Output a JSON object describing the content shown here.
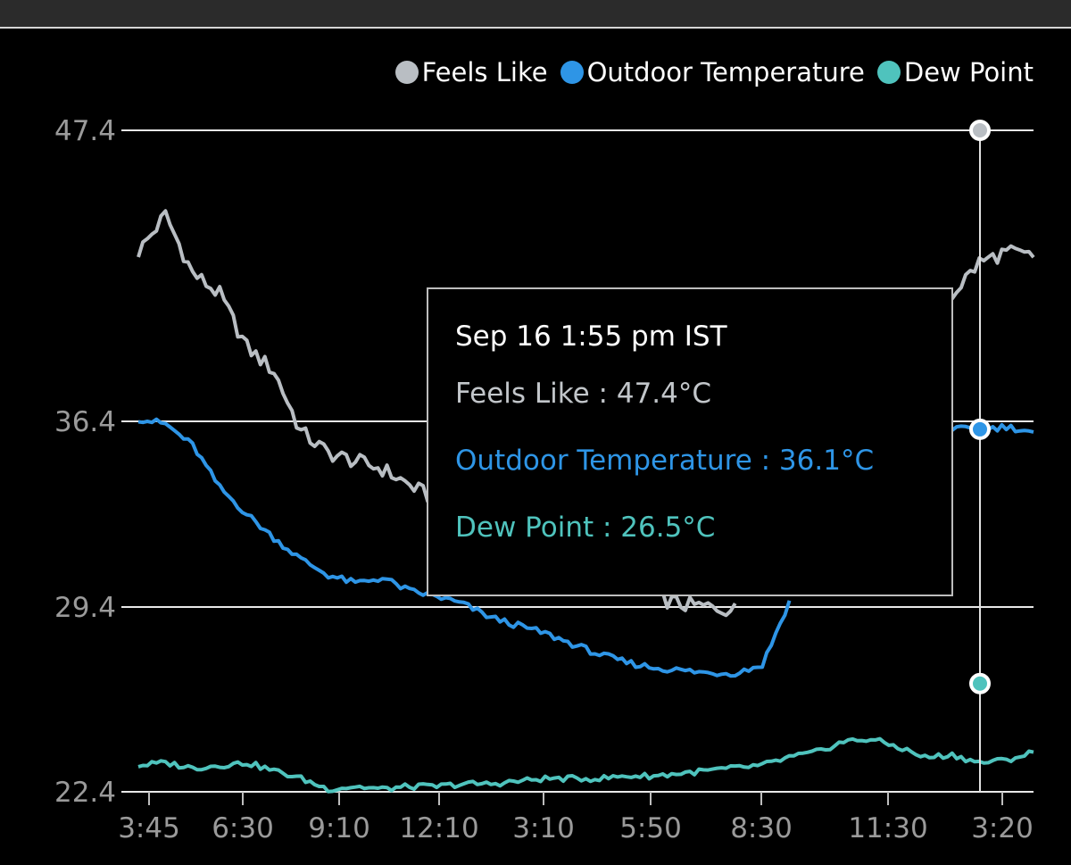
{
  "chart_data": {
    "type": "line",
    "yticks": [
      "47.4",
      "36.4",
      "29.4",
      "22.4"
    ],
    "xticks": [
      "3:45",
      "6:30",
      "9:10",
      "12:10",
      "3:10",
      "5:50",
      "8:30",
      "11:30",
      "3:20"
    ],
    "ylim": [
      22.4,
      47.4
    ],
    "grid": true,
    "legend_position": "top-right",
    "series": [
      {
        "name": "Feels Like",
        "color": "#b9bec3",
        "values": [
          42.8,
          44.2,
          42.0,
          41.2,
          39.2,
          38.3,
          36.0,
          35.2,
          34.9,
          34.6,
          34.0,
          33.4,
          32.9,
          32.4,
          31.8,
          31.4,
          30.8,
          30.5,
          30.2,
          29.8,
          29.5,
          29.4,
          29.3,
          29.6,
          31.5,
          33.6,
          35.8,
          38.2,
          39.8,
          40.8,
          41.2,
          42.4,
          42.8,
          42.6
        ],
        "gaps": [
          [
            22,
            25
          ]
        ]
      },
      {
        "name": "Outdoor Temperature",
        "color": "#2e95e6",
        "values": [
          36.5,
          36.3,
          35.5,
          33.9,
          32.9,
          32.0,
          31.2,
          30.6,
          30.3,
          30.5,
          30.0,
          29.8,
          29.5,
          29.0,
          28.7,
          28.4,
          28.0,
          27.6,
          27.3,
          27.1,
          27.0,
          26.9,
          26.9,
          27.2,
          29.6,
          31.8,
          33.6,
          34.8,
          35.6,
          35.9,
          36.1,
          36.1,
          36.2,
          36.0
        ],
        "gaps": [
          [
            24,
            28
          ]
        ]
      },
      {
        "name": "Dew Point",
        "color": "#4fc3bd",
        "values": [
          23.4,
          23.5,
          23.3,
          23.4,
          23.5,
          23.2,
          22.9,
          22.5,
          22.6,
          22.5,
          22.6,
          22.6,
          22.7,
          22.7,
          22.8,
          22.9,
          22.9,
          22.9,
          23.0,
          23.0,
          23.1,
          23.2,
          23.3,
          23.4,
          23.7,
          23.9,
          24.3,
          24.4,
          24.1,
          23.7,
          23.8,
          23.5,
          23.6,
          23.9
        ],
        "gaps": []
      }
    ],
    "cursor": {
      "values": {
        "Feels Like": 47.4,
        "Outdoor Temperature": 36.1,
        "Dew Point": 26.5
      }
    },
    "tooltip": {
      "title": "Sep 16 1:55 pm IST",
      "rows": [
        {
          "label": "Feels Like : 47.4°C",
          "color": "#c2c6ca"
        },
        {
          "label": "Outdoor Temperature : 36.1°C",
          "color": "#2e95e6"
        },
        {
          "label": "Dew Point : 26.5°C",
          "color": "#4fc3bd"
        }
      ]
    }
  },
  "colors": {
    "background": "#000000",
    "grid": "#e8e8e8",
    "tick_text": "#9a9a9a"
  }
}
